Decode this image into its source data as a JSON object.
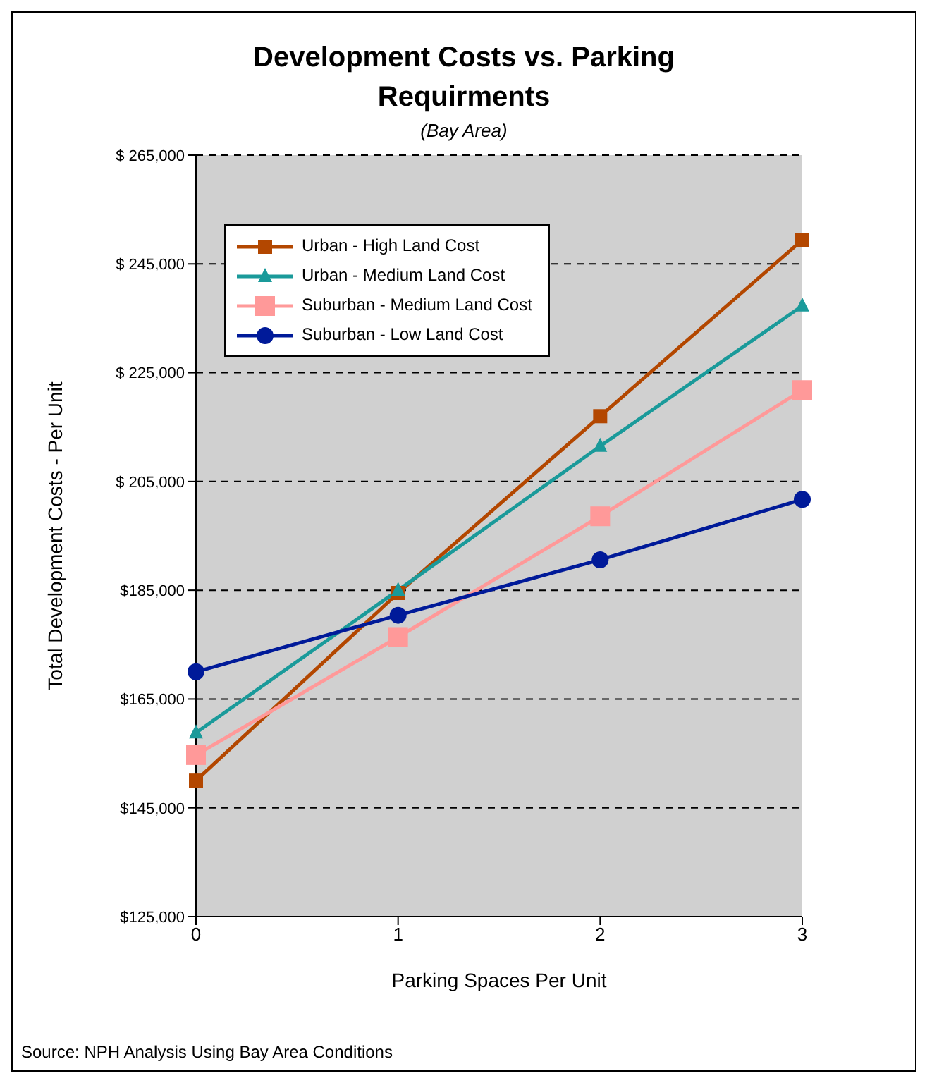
{
  "chart_data": {
    "type": "line",
    "title": "Development Costs vs. Parking Requirments",
    "subtitle": "(Bay Area)",
    "xlabel": "Parking Spaces Per Unit",
    "ylabel": "Total Development Costs - Per Unit",
    "categories": [
      "0",
      "1",
      "2",
      "3"
    ],
    "series": [
      {
        "name": "Urban - High Land Cost",
        "color": "#b34700",
        "marker": "square",
        "values": [
          150000,
          184500,
          217000,
          249400
        ]
      },
      {
        "name": "Urban - Medium Land Cost",
        "color": "#1a9a9a",
        "marker": "triangle",
        "values": [
          158800,
          185000,
          211500,
          237300
        ]
      },
      {
        "name": "Suburban - Medium Land Cost",
        "color": "#ff9999",
        "marker": "square",
        "values": [
          154700,
          176400,
          198600,
          221800
        ]
      },
      {
        "name": "Suburban - Low Land Cost",
        "color": "#001a99",
        "marker": "circle",
        "values": [
          170000,
          180400,
          190600,
          201700
        ]
      }
    ],
    "ylim": [
      125000,
      265000
    ],
    "yticks": [
      {
        "value": 125000,
        "label": "$125,000"
      },
      {
        "value": 145000,
        "label": "$145,000"
      },
      {
        "value": 165000,
        "label": "$165,000"
      },
      {
        "value": 185000,
        "label": "$185,000"
      },
      {
        "value": 205000,
        "label": "$ 205,000"
      },
      {
        "value": 225000,
        "label": "$ 225,000"
      },
      {
        "value": 245000,
        "label": "$ 245,000"
      },
      {
        "value": 265000,
        "label": "$ 265,000"
      }
    ],
    "grid": "y",
    "legend": "top left",
    "annotations": [
      "Source: NPH Analysis Using Bay Area Conditions"
    ]
  }
}
